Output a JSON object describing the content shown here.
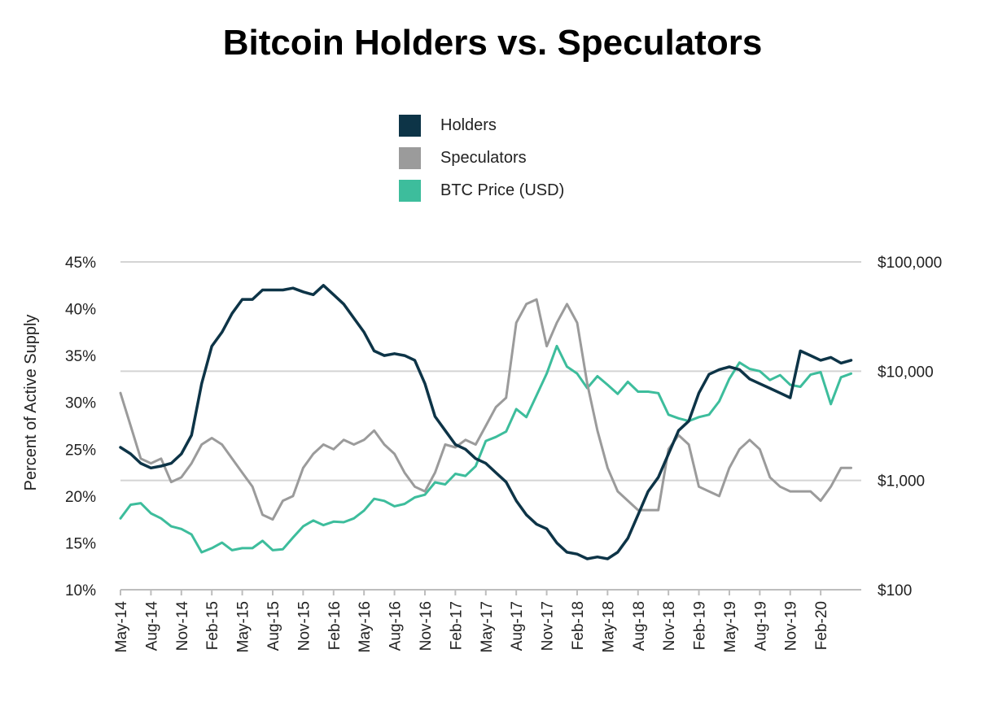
{
  "chart_data": {
    "type": "line",
    "title": "Bitcoin Holders vs. Speculators",
    "ylabel": "Percent of Active Supply",
    "y_left": {
      "ticks": [
        10,
        15,
        20,
        25,
        30,
        35,
        40,
        45
      ],
      "tick_labels": [
        "10%",
        "15%",
        "20%",
        "25%",
        "30%",
        "35%",
        "40%",
        "45%"
      ],
      "ylim": [
        10,
        45
      ]
    },
    "y_right": {
      "scale": "log",
      "ticks": [
        100,
        1000,
        10000,
        100000
      ],
      "tick_labels": [
        "$100",
        "$1,000",
        "$10,000",
        "$100,000"
      ],
      "ylim": [
        100,
        100000
      ]
    },
    "x": {
      "type": "date",
      "range": [
        "2014-05",
        "2020-06"
      ],
      "tick_labels": [
        "May-14",
        "Aug-14",
        "Nov-14",
        "Feb-15",
        "May-15",
        "Aug-15",
        "Nov-15",
        "Feb-16",
        "May-16",
        "Aug-16",
        "Nov-16",
        "Feb-17",
        "May-17",
        "Aug-17",
        "Nov-17",
        "Feb-18",
        "May-18",
        "Aug-18",
        "Nov-18",
        "Feb-19",
        "May-19",
        "Aug-19",
        "Nov-19",
        "Feb-20"
      ],
      "tick_dates": [
        "2014-05",
        "2014-08",
        "2014-11",
        "2015-02",
        "2015-05",
        "2015-08",
        "2015-11",
        "2016-02",
        "2016-05",
        "2016-08",
        "2016-11",
        "2017-02",
        "2017-05",
        "2017-08",
        "2017-11",
        "2018-02",
        "2018-05",
        "2018-08",
        "2018-11",
        "2019-02",
        "2019-05",
        "2019-08",
        "2019-11",
        "2020-02"
      ]
    },
    "grid": true,
    "legend_position": "top-center",
    "series": [
      {
        "name": "Holders",
        "axis": "left",
        "color": "#0d3447",
        "points": [
          [
            "2014-05",
            25.2
          ],
          [
            "2014-06",
            24.5
          ],
          [
            "2014-07",
            23.5
          ],
          [
            "2014-08",
            23.0
          ],
          [
            "2014-09",
            23.2
          ],
          [
            "2014-10",
            23.5
          ],
          [
            "2014-11",
            24.5
          ],
          [
            "2014-12",
            26.5
          ],
          [
            "2015-01",
            32.0
          ],
          [
            "2015-02",
            36.0
          ],
          [
            "2015-03",
            37.5
          ],
          [
            "2015-04",
            39.5
          ],
          [
            "2015-05",
            41.0
          ],
          [
            "2015-06",
            41.0
          ],
          [
            "2015-07",
            42.0
          ],
          [
            "2015-08",
            42.0
          ],
          [
            "2015-09",
            42.0
          ],
          [
            "2015-10",
            42.2
          ],
          [
            "2015-11",
            41.8
          ],
          [
            "2015-12",
            41.5
          ],
          [
            "2016-01",
            42.5
          ],
          [
            "2016-02",
            41.5
          ],
          [
            "2016-03",
            40.5
          ],
          [
            "2016-04",
            39.0
          ],
          [
            "2016-05",
            37.5
          ],
          [
            "2016-06",
            35.5
          ],
          [
            "2016-07",
            35.0
          ],
          [
            "2016-08",
            35.2
          ],
          [
            "2016-09",
            35.0
          ],
          [
            "2016-10",
            34.5
          ],
          [
            "2016-11",
            32.0
          ],
          [
            "2016-12",
            28.5
          ],
          [
            "2017-01",
            27.0
          ],
          [
            "2017-02",
            25.5
          ],
          [
            "2017-03",
            25.0
          ],
          [
            "2017-04",
            24.0
          ],
          [
            "2017-05",
            23.5
          ],
          [
            "2017-06",
            22.5
          ],
          [
            "2017-07",
            21.5
          ],
          [
            "2017-08",
            19.5
          ],
          [
            "2017-09",
            18.0
          ],
          [
            "2017-10",
            17.0
          ],
          [
            "2017-11",
            16.5
          ],
          [
            "2017-12",
            15.0
          ],
          [
            "2018-01",
            14.0
          ],
          [
            "2018-02",
            13.8
          ],
          [
            "2018-03",
            13.3
          ],
          [
            "2018-04",
            13.5
          ],
          [
            "2018-05",
            13.3
          ],
          [
            "2018-06",
            14.0
          ],
          [
            "2018-07",
            15.5
          ],
          [
            "2018-08",
            18.0
          ],
          [
            "2018-09",
            20.5
          ],
          [
            "2018-10",
            22.0
          ],
          [
            "2018-11",
            24.5
          ],
          [
            "2018-12",
            27.0
          ],
          [
            "2019-01",
            28.0
          ],
          [
            "2019-02",
            31.0
          ],
          [
            "2019-03",
            33.0
          ],
          [
            "2019-04",
            33.5
          ],
          [
            "2019-05",
            33.8
          ],
          [
            "2019-06",
            33.5
          ],
          [
            "2019-07",
            32.5
          ],
          [
            "2019-08",
            32.0
          ],
          [
            "2019-09",
            31.5
          ],
          [
            "2019-10",
            31.0
          ],
          [
            "2019-11",
            30.5
          ],
          [
            "2019-12",
            35.5
          ],
          [
            "2020-01",
            35.0
          ],
          [
            "2020-02",
            34.5
          ],
          [
            "2020-03",
            34.8
          ],
          [
            "2020-04",
            34.2
          ],
          [
            "2020-05",
            34.5
          ]
        ]
      },
      {
        "name": "Speculators",
        "axis": "left",
        "color": "#9b9b9b",
        "points": [
          [
            "2014-05",
            31.0
          ],
          [
            "2014-06",
            27.5
          ],
          [
            "2014-07",
            24.0
          ],
          [
            "2014-08",
            23.5
          ],
          [
            "2014-09",
            24.0
          ],
          [
            "2014-10",
            21.5
          ],
          [
            "2014-11",
            22.0
          ],
          [
            "2014-12",
            23.5
          ],
          [
            "2015-01",
            25.5
          ],
          [
            "2015-02",
            26.2
          ],
          [
            "2015-03",
            25.5
          ],
          [
            "2015-04",
            24.0
          ],
          [
            "2015-05",
            22.5
          ],
          [
            "2015-06",
            21.0
          ],
          [
            "2015-07",
            18.0
          ],
          [
            "2015-08",
            17.5
          ],
          [
            "2015-09",
            19.5
          ],
          [
            "2015-10",
            20.0
          ],
          [
            "2015-11",
            23.0
          ],
          [
            "2015-12",
            24.5
          ],
          [
            "2016-01",
            25.5
          ],
          [
            "2016-02",
            25.0
          ],
          [
            "2016-03",
            26.0
          ],
          [
            "2016-04",
            25.5
          ],
          [
            "2016-05",
            26.0
          ],
          [
            "2016-06",
            27.0
          ],
          [
            "2016-07",
            25.5
          ],
          [
            "2016-08",
            24.5
          ],
          [
            "2016-09",
            22.5
          ],
          [
            "2016-10",
            21.0
          ],
          [
            "2016-11",
            20.5
          ],
          [
            "2016-12",
            22.5
          ],
          [
            "2017-01",
            25.5
          ],
          [
            "2017-02",
            25.2
          ],
          [
            "2017-03",
            26.0
          ],
          [
            "2017-04",
            25.5
          ],
          [
            "2017-05",
            27.5
          ],
          [
            "2017-06",
            29.5
          ],
          [
            "2017-07",
            30.5
          ],
          [
            "2017-08",
            38.5
          ],
          [
            "2017-09",
            40.5
          ],
          [
            "2017-10",
            41.0
          ],
          [
            "2017-11",
            36.0
          ],
          [
            "2017-12",
            38.5
          ],
          [
            "2018-01",
            40.5
          ],
          [
            "2018-02",
            38.5
          ],
          [
            "2018-03",
            32.0
          ],
          [
            "2018-04",
            27.0
          ],
          [
            "2018-05",
            23.0
          ],
          [
            "2018-06",
            20.5
          ],
          [
            "2018-07",
            19.5
          ],
          [
            "2018-08",
            18.5
          ],
          [
            "2018-09",
            18.5
          ],
          [
            "2018-10",
            18.5
          ],
          [
            "2018-11",
            25.0
          ],
          [
            "2018-12",
            26.5
          ],
          [
            "2019-01",
            25.5
          ],
          [
            "2019-02",
            21.0
          ],
          [
            "2019-03",
            20.5
          ],
          [
            "2019-04",
            20.0
          ],
          [
            "2019-05",
            23.0
          ],
          [
            "2019-06",
            25.0
          ],
          [
            "2019-07",
            26.0
          ],
          [
            "2019-08",
            25.0
          ],
          [
            "2019-09",
            22.0
          ],
          [
            "2019-10",
            21.0
          ],
          [
            "2019-11",
            20.5
          ],
          [
            "2019-12",
            20.5
          ],
          [
            "2020-01",
            20.5
          ],
          [
            "2020-02",
            19.5
          ],
          [
            "2020-03",
            21.0
          ],
          [
            "2020-04",
            23.0
          ],
          [
            "2020-05",
            23.0
          ]
        ]
      },
      {
        "name": "BTC Price (USD)",
        "axis": "right",
        "color": "#3dbd9c",
        "points": [
          [
            "2014-05",
            450
          ],
          [
            "2014-06",
            600
          ],
          [
            "2014-07",
            620
          ],
          [
            "2014-08",
            500
          ],
          [
            "2014-09",
            450
          ],
          [
            "2014-10",
            380
          ],
          [
            "2014-11",
            360
          ],
          [
            "2014-12",
            320
          ],
          [
            "2015-01",
            220
          ],
          [
            "2015-02",
            240
          ],
          [
            "2015-03",
            270
          ],
          [
            "2015-04",
            230
          ],
          [
            "2015-05",
            240
          ],
          [
            "2015-06",
            240
          ],
          [
            "2015-07",
            280
          ],
          [
            "2015-08",
            230
          ],
          [
            "2015-09",
            235
          ],
          [
            "2015-10",
            300
          ],
          [
            "2015-11",
            380
          ],
          [
            "2015-12",
            430
          ],
          [
            "2016-01",
            390
          ],
          [
            "2016-02",
            420
          ],
          [
            "2016-03",
            415
          ],
          [
            "2016-04",
            450
          ],
          [
            "2016-05",
            530
          ],
          [
            "2016-06",
            680
          ],
          [
            "2016-07",
            650
          ],
          [
            "2016-08",
            580
          ],
          [
            "2016-09",
            610
          ],
          [
            "2016-10",
            700
          ],
          [
            "2016-11",
            740
          ],
          [
            "2016-12",
            960
          ],
          [
            "2017-01",
            920
          ],
          [
            "2017-02",
            1150
          ],
          [
            "2017-03",
            1100
          ],
          [
            "2017-04",
            1350
          ],
          [
            "2017-05",
            2300
          ],
          [
            "2017-06",
            2500
          ],
          [
            "2017-07",
            2800
          ],
          [
            "2017-08",
            4500
          ],
          [
            "2017-09",
            3800
          ],
          [
            "2017-10",
            6000
          ],
          [
            "2017-11",
            9500
          ],
          [
            "2017-12",
            17000
          ],
          [
            "2018-01",
            11000
          ],
          [
            "2018-02",
            9500
          ],
          [
            "2018-03",
            7000
          ],
          [
            "2018-04",
            9000
          ],
          [
            "2018-05",
            7500
          ],
          [
            "2018-06",
            6200
          ],
          [
            "2018-07",
            8000
          ],
          [
            "2018-08",
            6500
          ],
          [
            "2018-09",
            6500
          ],
          [
            "2018-10",
            6300
          ],
          [
            "2018-11",
            4000
          ],
          [
            "2018-12",
            3700
          ],
          [
            "2019-01",
            3500
          ],
          [
            "2019-02",
            3800
          ],
          [
            "2019-03",
            4000
          ],
          [
            "2019-04",
            5300
          ],
          [
            "2019-05",
            8500
          ],
          [
            "2019-06",
            12000
          ],
          [
            "2019-07",
            10500
          ],
          [
            "2019-08",
            10000
          ],
          [
            "2019-09",
            8300
          ],
          [
            "2019-10",
            9200
          ],
          [
            "2019-11",
            7500
          ],
          [
            "2019-12",
            7200
          ],
          [
            "2020-01",
            9300
          ],
          [
            "2020-02",
            9800
          ],
          [
            "2020-03",
            5000
          ],
          [
            "2020-04",
            8800
          ],
          [
            "2020-05",
            9500
          ]
        ]
      }
    ]
  }
}
